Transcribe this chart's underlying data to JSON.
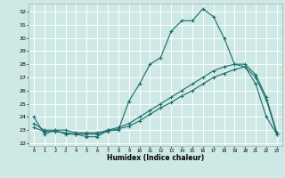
{
  "xlabel": "Humidex (Indice chaleur)",
  "bg_color": "#cde8e5",
  "grid_color": "#ffffff",
  "line_color": "#1a6b6b",
  "xlim": [
    -0.5,
    23.5
  ],
  "ylim": [
    21.8,
    32.6
  ],
  "xticks": [
    0,
    1,
    2,
    3,
    4,
    5,
    6,
    7,
    8,
    9,
    10,
    11,
    12,
    13,
    14,
    15,
    16,
    17,
    18,
    19,
    20,
    21,
    22,
    23
  ],
  "yticks": [
    22,
    23,
    24,
    25,
    26,
    27,
    28,
    29,
    30,
    31,
    32
  ],
  "series1": [
    24.0,
    22.7,
    23.0,
    22.7,
    22.7,
    22.5,
    22.5,
    23.0,
    23.0,
    25.2,
    26.5,
    28.0,
    28.5,
    30.5,
    31.3,
    31.3,
    32.2,
    31.6,
    30.0,
    28.0,
    27.8,
    26.5,
    24.0,
    22.7
  ],
  "series2": [
    23.5,
    23.0,
    23.0,
    23.0,
    22.8,
    22.8,
    22.8,
    23.0,
    23.2,
    23.5,
    24.0,
    24.5,
    25.0,
    25.5,
    26.0,
    26.5,
    27.0,
    27.5,
    27.8,
    28.0,
    28.0,
    27.2,
    25.5,
    22.8
  ],
  "series3": [
    23.2,
    22.9,
    22.9,
    22.8,
    22.7,
    22.7,
    22.7,
    22.9,
    23.1,
    23.3,
    23.7,
    24.2,
    24.7,
    25.1,
    25.6,
    26.0,
    26.5,
    27.0,
    27.3,
    27.6,
    27.8,
    27.0,
    25.3,
    22.7
  ]
}
